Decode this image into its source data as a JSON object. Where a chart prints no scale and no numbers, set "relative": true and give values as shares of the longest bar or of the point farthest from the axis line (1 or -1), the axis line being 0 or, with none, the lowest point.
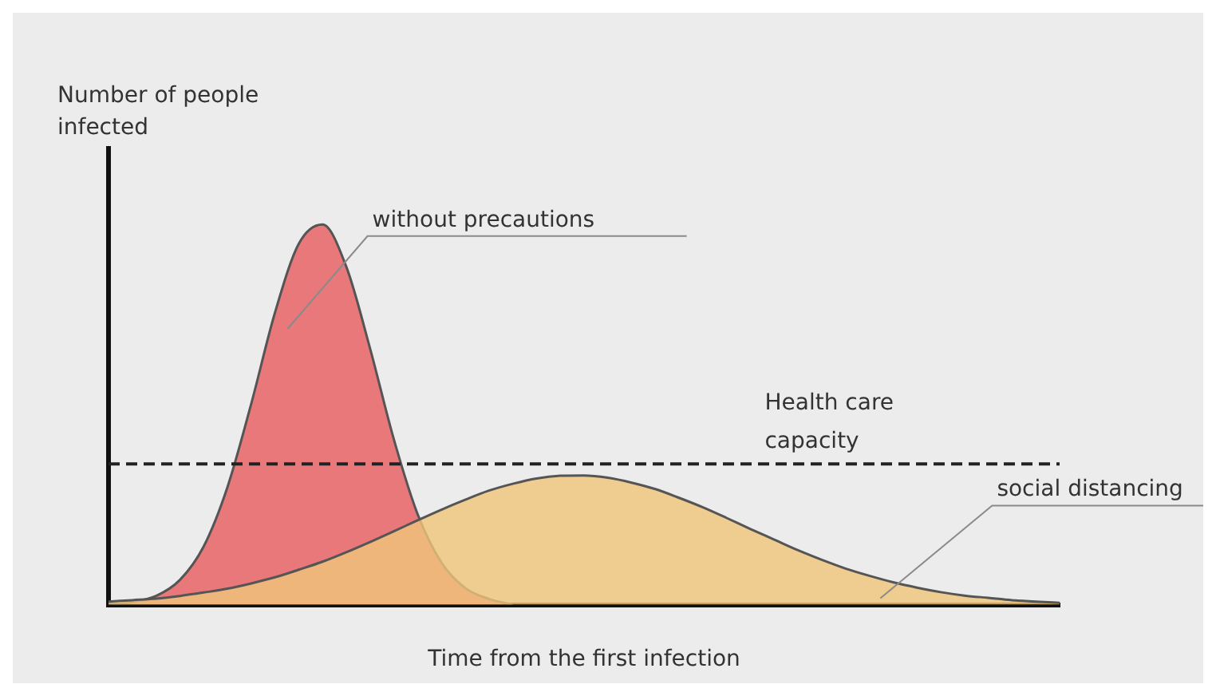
{
  "chart_data": {
    "type": "area",
    "relative": true,
    "xlabel": "Time from the first infection",
    "ylabel": "Number of people infected",
    "legend": false,
    "grid": false,
    "categories": [
      null,
      null,
      null,
      null,
      null,
      null,
      null,
      null,
      null,
      null,
      null,
      null,
      null,
      null,
      null,
      null,
      null,
      null,
      null,
      null,
      null,
      null,
      null,
      null,
      null,
      null,
      null,
      null,
      null,
      null,
      null,
      null,
      null,
      null,
      null,
      null,
      null,
      null,
      null,
      null,
      null
    ],
    "series": [
      {
        "name": "without precautions",
        "color": "#e8787a",
        "values": [
          0,
          0.007,
          0.023,
          0.065,
          0.153,
          0.309,
          0.528,
          0.768,
          0.949,
          1,
          0.889,
          0.674,
          0.435,
          0.238,
          0.111,
          0.044,
          0.015,
          0,
          null,
          null,
          null,
          null,
          null,
          null,
          null,
          null,
          null,
          null,
          null,
          null,
          null,
          null,
          null,
          null,
          null,
          null,
          null,
          null,
          null,
          null,
          null
        ]
      },
      {
        "name": "social distancing",
        "color": "#efc47a",
        "values": [
          0.008,
          0.012,
          0.016,
          0.023,
          0.032,
          0.042,
          0.056,
          0.072,
          0.092,
          0.113,
          0.138,
          0.165,
          0.193,
          0.222,
          0.25,
          0.276,
          0.3,
          0.318,
          0.332,
          0.339,
          0.34,
          0.334,
          0.321,
          0.304,
          0.281,
          0.256,
          0.228,
          0.199,
          0.171,
          0.143,
          0.118,
          0.095,
          0.076,
          0.059,
          0.045,
          0.033,
          0.024,
          0.018,
          0.012,
          0.008,
          0.005
        ]
      }
    ],
    "ref_lines": [
      {
        "axis": "y",
        "value": 0.37,
        "label": "Health care capacity",
        "color": "#222222",
        "line_style": "dashed"
      }
    ]
  }
}
